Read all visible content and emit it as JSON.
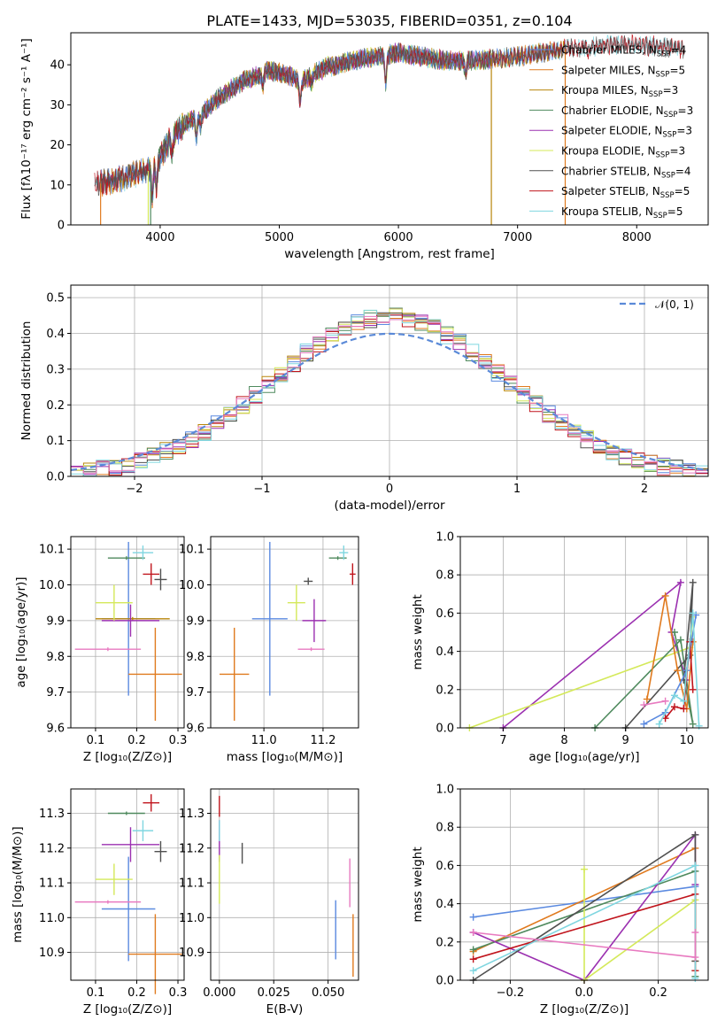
{
  "title": "PLATE=1433, MJD=53035, FIBERID=0351, z=0.104",
  "colors": {
    "Chabrier MILES": "#5b8ae0",
    "Salpeter MILES": "#e07a1e",
    "Kroupa MILES": "#b8860b",
    "Chabrier ELODIE": "#4f8a5e",
    "Salpeter ELODIE": "#9b30b0",
    "Kroupa ELODIE": "#d4e95a",
    "Chabrier STELIB": "#505050",
    "Salpeter STELIB": "#c0141c",
    "Kroupa STELIB": "#7fd6e0",
    "extra": "#e87ac0",
    "normal": "#5b8ad8"
  },
  "chart_data": [
    {
      "type": "line",
      "name": "spectrum",
      "xlabel": "wavelength [Angstrom, rest frame]",
      "ylabel": "Flux [fλ10⁻¹⁷ erg cm⁻² s⁻¹ A⁻¹]",
      "xlim": [
        3250,
        8600
      ],
      "ylim": [
        0,
        48
      ],
      "xticks": [
        "4000",
        "5000",
        "6000",
        "7000",
        "8000"
      ],
      "yticks": [
        "0",
        "10",
        "20",
        "30",
        "40"
      ],
      "legend_position": "top-right",
      "legend": [
        {
          "model": "Chabrier MILES",
          "text": "Chabrier MILES, N",
          "sub": "SSP",
          "tail": "=4"
        },
        {
          "model": "Salpeter MILES",
          "text": "Salpeter MILES, N",
          "sub": "SSP",
          "tail": "=5"
        },
        {
          "model": "Kroupa MILES",
          "text": "Kroupa MILES, N",
          "sub": "SSP",
          "tail": "=3"
        },
        {
          "model": "Chabrier ELODIE",
          "text": "Chabrier ELODIE, N",
          "sub": "SSP",
          "tail": "=3"
        },
        {
          "model": "Salpeter ELODIE",
          "text": "Salpeter ELODIE, N",
          "sub": "SSP",
          "tail": "=3"
        },
        {
          "model": "Kroupa ELODIE",
          "text": "Kroupa ELODIE, N",
          "sub": "SSP",
          "tail": "=3"
        },
        {
          "model": "Chabrier STELIB",
          "text": "Chabrier STELIB, N",
          "sub": "SSP",
          "tail": "=4"
        },
        {
          "model": "Salpeter STELIB",
          "text": "Salpeter STELIB, N",
          "sub": "SSP",
          "tail": "=5"
        },
        {
          "model": "Kroupa STELIB",
          "text": "Kroupa STELIB, N",
          "sub": "SSP",
          "tail": "=5"
        }
      ],
      "continuum_x": [
        3450,
        3600,
        3750,
        3900,
        4000,
        4100,
        4200,
        4300,
        4400,
        4500,
        4600,
        4700,
        4800,
        4900,
        5000,
        5100,
        5200,
        5300,
        5400,
        5500,
        5600,
        5700,
        5800,
        5900,
        6000,
        6200,
        6400,
        6600,
        6800,
        7000,
        7200,
        7400,
        7600,
        7800,
        8000,
        8200,
        8400
      ],
      "continuum_y": [
        10,
        11,
        12.5,
        13.5,
        17,
        22,
        25,
        27,
        29,
        32,
        34,
        36,
        37,
        38.5,
        38,
        37,
        36,
        38,
        39.5,
        40,
        41,
        41.5,
        42,
        42.5,
        43,
        42,
        41,
        41,
        41.5,
        42,
        43,
        44,
        44.5,
        45,
        45,
        44.5,
        44
      ],
      "model_ranges": {
        "Chabrier MILES": [
          3500,
          7400
        ],
        "Salpeter MILES": [
          3500,
          7400
        ],
        "Kroupa MILES": [
          3500,
          7400
        ],
        "Chabrier ELODIE": [
          3900,
          6780
        ],
        "Salpeter ELODIE": [
          3900,
          6780
        ],
        "Kroupa ELODIE": [
          3900,
          6780
        ],
        "Chabrier STELIB": [
          3450,
          8400
        ],
        "Salpeter STELIB": [
          3450,
          8400
        ],
        "Kroupa STELIB": [
          3450,
          8400
        ]
      },
      "dropouts": [
        {
          "model": "Salpeter MILES",
          "x": 3500
        },
        {
          "model": "Salpeter MILES",
          "x": 7400
        },
        {
          "model": "Kroupa ELODIE",
          "x": 3900
        },
        {
          "model": "Kroupa MILES",
          "x": 6780
        },
        {
          "model": "Chabrier ELODIE",
          "x": 3920
        }
      ]
    },
    {
      "type": "bar",
      "name": "residual-histogram",
      "xlabel": "(data-model)/error",
      "ylabel": "Normed distribution",
      "xlim": [
        -2.5,
        2.5
      ],
      "ylim": [
        0,
        0.535
      ],
      "xticks": [
        "−2",
        "−1",
        "0",
        "1",
        "2"
      ],
      "yticks": [
        "0.0",
        "0.1",
        "0.2",
        "0.3",
        "0.4",
        "0.5"
      ],
      "bin_width": 0.1,
      "legend_label": "𝒩(0, 1)",
      "legend_position": "top-right"
    },
    {
      "type": "scatter",
      "name": "age-vs-Z",
      "xlabel": "Z [log₁₀(Z/Z⊙)]",
      "ylabel": "age  [log₁₀(age/yr)]",
      "xlim": [
        0.04,
        0.315
      ],
      "ylim": [
        9.6,
        10.135
      ],
      "xticks": [
        "0.1",
        "0.2",
        "0.3"
      ],
      "yticks": [
        "9.6",
        "9.7",
        "9.8",
        "9.9",
        "10.0",
        "10.1"
      ],
      "points": [
        {
          "model": "Chabrier MILES",
          "x": 0.18,
          "xe": 0.065,
          "y": 9.905,
          "ye": 0.215
        },
        {
          "model": "Salpeter MILES",
          "x": 0.245,
          "xe": 0.065,
          "y": 9.75,
          "ye": 0.13
        },
        {
          "model": "Kroupa MILES",
          "x": 0.19,
          "xe": 0.09,
          "y": 9.905,
          "ye": 0.005
        },
        {
          "model": "Chabrier ELODIE",
          "x": 0.175,
          "xe": 0.045,
          "y": 10.075,
          "ye": 0.005
        },
        {
          "model": "Salpeter ELODIE",
          "x": 0.185,
          "xe": 0.07,
          "y": 9.9,
          "ye": 0.045
        },
        {
          "model": "Kroupa ELODIE",
          "x": 0.145,
          "xe": 0.045,
          "y": 9.95,
          "ye": 0.05
        },
        {
          "model": "Chabrier STELIB",
          "x": 0.258,
          "xe": 0.015,
          "y": 10.015,
          "ye": 0.03
        },
        {
          "model": "Salpeter STELIB",
          "x": 0.235,
          "xe": 0.02,
          "y": 10.03,
          "ye": 0.03
        },
        {
          "model": "Kroupa STELIB",
          "x": 0.215,
          "xe": 0.025,
          "y": 10.09,
          "ye": 0.02
        },
        {
          "model": "extra",
          "x": 0.13,
          "xe": 0.08,
          "y": 9.82,
          "ye": 0.005
        }
      ]
    },
    {
      "type": "scatter",
      "name": "age-vs-mass",
      "xlabel": "mass [log₁₀(M/M⊙)]",
      "ylabel": "",
      "xlim": [
        10.82,
        11.32
      ],
      "ylim": [
        9.6,
        10.135
      ],
      "xticks": [
        "11.0",
        "11.2"
      ],
      "yticks": [
        "9.6",
        "9.7",
        "9.8",
        "9.9",
        "10.0",
        "10.1"
      ],
      "points": [
        {
          "model": "Chabrier MILES",
          "x": 11.02,
          "xe": 0.06,
          "y": 9.905,
          "ye": 0.215
        },
        {
          "model": "Salpeter MILES",
          "x": 10.9,
          "xe": 0.05,
          "y": 9.75,
          "ye": 0.13
        },
        {
          "model": "Chabrier ELODIE",
          "x": 11.25,
          "xe": 0.03,
          "y": 10.075,
          "ye": 0.005
        },
        {
          "model": "Salpeter ELODIE",
          "x": 11.17,
          "xe": 0.04,
          "y": 9.9,
          "ye": 0.06
        },
        {
          "model": "Kroupa ELODIE",
          "x": 11.11,
          "xe": 0.03,
          "y": 9.95,
          "ye": 0.05
        },
        {
          "model": "Chabrier STELIB",
          "x": 11.15,
          "xe": 0.015,
          "y": 10.01,
          "ye": 0.01
        },
        {
          "model": "Salpeter STELIB",
          "x": 11.3,
          "xe": 0.01,
          "y": 10.03,
          "ye": 0.03
        },
        {
          "model": "Kroupa STELIB",
          "x": 11.27,
          "xe": 0.015,
          "y": 10.09,
          "ye": 0.02
        },
        {
          "model": "extra",
          "x": 11.16,
          "xe": 0.045,
          "y": 9.82,
          "ye": 0.005
        }
      ]
    },
    {
      "type": "line",
      "name": "mass-weight-vs-age",
      "xlabel": "age  [log₁₀(age/yr)]",
      "ylabel": "mass weight",
      "xlim": [
        6.3,
        10.35
      ],
      "ylim": [
        0,
        1.0
      ],
      "xticks": [
        "7",
        "8",
        "9",
        "10"
      ],
      "yticks": [
        "0.0",
        "0.2",
        "0.4",
        "0.6",
        "0.8",
        "1.0"
      ],
      "series": [
        {
          "model": "Salpeter ELODIE",
          "x": [
            7.0,
            9.9,
            9.75,
            10.0
          ],
          "y": [
            0.0,
            0.76,
            0.5,
            0.25
          ]
        },
        {
          "model": "Kroupa ELODIE",
          "x": [
            6.45,
            10.05,
            10.1
          ],
          "y": [
            0.0,
            0.42,
            0.58
          ]
        },
        {
          "model": "Chabrier ELODIE",
          "x": [
            8.5,
            9.9,
            10.1,
            9.8
          ],
          "y": [
            0.0,
            0.46,
            0.02,
            0.5
          ]
        },
        {
          "model": "Chabrier STELIB",
          "x": [
            9.0,
            10.05,
            10.1,
            9.95
          ],
          "y": [
            0.0,
            0.38,
            0.76,
            0.25
          ]
        },
        {
          "model": "Salpeter MILES",
          "x": [
            9.35,
            9.65,
            9.85,
            10.0,
            10.1
          ],
          "y": [
            0.15,
            0.69,
            0.3,
            0.1,
            0.45
          ]
        },
        {
          "model": "Chabrier MILES",
          "x": [
            9.3,
            9.65,
            10.0,
            10.15
          ],
          "y": [
            0.02,
            0.08,
            0.3,
            0.59
          ]
        },
        {
          "model": "Salpeter STELIB",
          "x": [
            9.65,
            9.8,
            9.95,
            10.05,
            10.1
          ],
          "y": [
            0.05,
            0.11,
            0.1,
            0.45,
            0.2
          ]
        },
        {
          "model": "Kroupa STELIB",
          "x": [
            9.55,
            9.8,
            9.95,
            10.1,
            10.2
          ],
          "y": [
            0.02,
            0.17,
            0.14,
            0.6,
            0.01
          ]
        },
        {
          "model": "extra",
          "x": [
            9.3,
            9.65
          ],
          "y": [
            0.12,
            0.14
          ]
        }
      ]
    },
    {
      "type": "scatter",
      "name": "mass-vs-Z",
      "xlabel": "Z [log₁₀(Z/Z⊙)]",
      "ylabel": "mass [log₁₀(M/M⊙)]",
      "xlim": [
        0.04,
        0.315
      ],
      "ylim": [
        10.82,
        11.37
      ],
      "xticks": [
        "0.1",
        "0.2",
        "0.3"
      ],
      "yticks": [
        "10.9",
        "11.0",
        "11.1",
        "11.2",
        "11.3"
      ],
      "points": [
        {
          "model": "Chabrier MILES",
          "x": 0.18,
          "xe": 0.065,
          "y": 11.025,
          "ye": 0.15
        },
        {
          "model": "Salpeter MILES",
          "x": 0.245,
          "xe": 0.065,
          "y": 10.895,
          "ye": 0.115
        },
        {
          "model": "Chabrier ELODIE",
          "x": 0.175,
          "xe": 0.045,
          "y": 11.3,
          "ye": 0.005
        },
        {
          "model": "Salpeter ELODIE",
          "x": 0.185,
          "xe": 0.07,
          "y": 11.21,
          "ye": 0.05
        },
        {
          "model": "Kroupa ELODIE",
          "x": 0.145,
          "xe": 0.045,
          "y": 11.11,
          "ye": 0.045
        },
        {
          "model": "Chabrier STELIB",
          "x": 0.258,
          "xe": 0.015,
          "y": 11.19,
          "ye": 0.03
        },
        {
          "model": "Salpeter STELIB",
          "x": 0.235,
          "xe": 0.02,
          "y": 11.33,
          "ye": 0.025
        },
        {
          "model": "Kroupa STELIB",
          "x": 0.215,
          "xe": 0.025,
          "y": 11.25,
          "ye": 0.03
        },
        {
          "model": "extra",
          "x": 0.13,
          "xe": 0.08,
          "y": 11.045,
          "ye": 0.005
        }
      ]
    },
    {
      "type": "scatter",
      "name": "mass-vs-EBV",
      "xlabel": "E(B-V)",
      "ylabel": "",
      "xlim": [
        -0.004,
        0.064
      ],
      "ylim": [
        10.82,
        11.37
      ],
      "xticks": [
        "0.000",
        "0.025",
        "0.050"
      ],
      "yticks": [
        "10.9",
        "11.0",
        "11.1",
        "11.2",
        "11.3"
      ],
      "points": [
        {
          "model": "Chabrier MILES",
          "x": 0.0535,
          "xe": 0,
          "y": 10.965,
          "ye": 0.085
        },
        {
          "model": "Salpeter MILES",
          "x": 0.0615,
          "xe": 0,
          "y": 10.92,
          "ye": 0.09
        },
        {
          "model": "Salpeter ELODIE",
          "x": 0.0,
          "xe": 0,
          "y": 11.22,
          "ye": 0.06
        },
        {
          "model": "Kroupa ELODIE",
          "x": 0.0,
          "xe": 0,
          "y": 11.11,
          "ye": 0.07
        },
        {
          "model": "Chabrier STELIB",
          "x": 0.0105,
          "xe": 0,
          "y": 11.185,
          "ye": 0.03
        },
        {
          "model": "Salpeter STELIB",
          "x": 0.0,
          "xe": 0,
          "y": 11.32,
          "ye": 0.03
        },
        {
          "model": "Kroupa STELIB",
          "x": 0.0,
          "xe": 0,
          "y": 11.25,
          "ye": 0.03
        },
        {
          "model": "extra",
          "x": 0.06,
          "xe": 0,
          "y": 11.1,
          "ye": 0.07
        }
      ]
    },
    {
      "type": "line",
      "name": "mass-weight-vs-Z",
      "xlabel": "Z [log₁₀(Z/Z⊙)]",
      "ylabel": "mass weight",
      "xlim": [
        -0.335,
        0.335
      ],
      "ylim": [
        0,
        1.0
      ],
      "xticks": [
        "−0.2",
        "0.0",
        "0.2"
      ],
      "yticks": [
        "0.0",
        "0.2",
        "0.4",
        "0.6",
        "0.8",
        "1.0"
      ],
      "series": [
        {
          "model": "Chabrier MILES",
          "x": [
            -0.3,
            0.3,
            0.3
          ],
          "y": [
            0.33,
            0.49,
            0.05
          ]
        },
        {
          "model": "Salpeter MILES",
          "x": [
            -0.3,
            0.3,
            0.3
          ],
          "y": [
            0.15,
            0.69,
            0.1
          ]
        },
        {
          "model": "Chabrier ELODIE",
          "x": [
            -0.3,
            0.3,
            0.3
          ],
          "y": [
            0.16,
            0.57,
            0.02
          ]
        },
        {
          "model": "Salpeter ELODIE",
          "x": [
            -0.3,
            0.0,
            0.3,
            0.3
          ],
          "y": [
            0.25,
            0.0,
            0.76,
            0.5
          ]
        },
        {
          "model": "Kroupa ELODIE",
          "x": [
            0.0,
            0.0,
            0.3,
            0.3
          ],
          "y": [
            0.58,
            0.0,
            0.42,
            0.05
          ]
        },
        {
          "model": "Chabrier STELIB",
          "x": [
            -0.3,
            0.3,
            0.3
          ],
          "y": [
            0.0,
            0.76,
            0.1
          ]
        },
        {
          "model": "Salpeter STELIB",
          "x": [
            -0.3,
            0.3,
            0.3
          ],
          "y": [
            0.11,
            0.45,
            0.05
          ]
        },
        {
          "model": "Kroupa STELIB",
          "x": [
            -0.3,
            0.3,
            0.3
          ],
          "y": [
            0.05,
            0.6,
            0.01
          ]
        },
        {
          "model": "extra",
          "x": [
            -0.3,
            0.3,
            0.3
          ],
          "y": [
            0.25,
            0.12,
            0.25
          ]
        }
      ]
    }
  ]
}
